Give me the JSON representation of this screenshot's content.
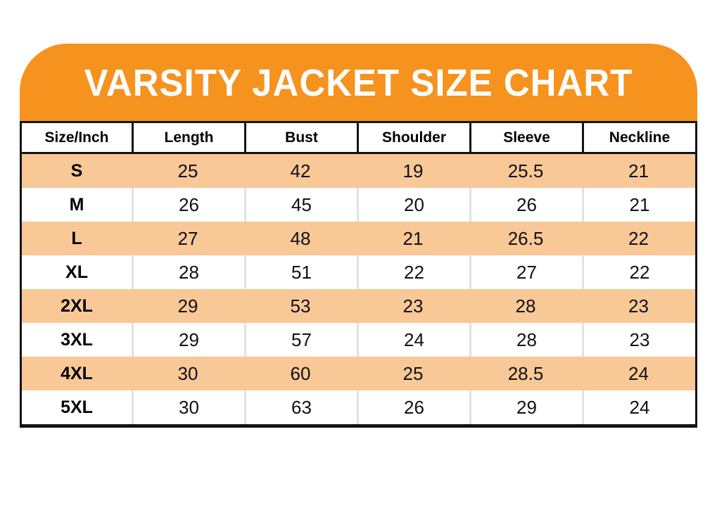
{
  "colors": {
    "banner_orange": "#F6921E",
    "stripe_orange": "#F8C897",
    "border_black": "#141414",
    "divider_gray": "#E2E2E2",
    "title_white": "#FFFFFF"
  },
  "chart_data": {
    "type": "table",
    "title": "VARSITY JACKET SIZE CHART",
    "units": "inches",
    "columns": [
      "Size/Inch",
      "Length",
      "Bust",
      "Shoulder",
      "Sleeve",
      "Neckline"
    ],
    "rows": [
      [
        "S",
        "25",
        "42",
        "19",
        "25.5",
        "21"
      ],
      [
        "M",
        "26",
        "45",
        "20",
        "26",
        "21"
      ],
      [
        "L",
        "27",
        "48",
        "21",
        "26.5",
        "22"
      ],
      [
        "XL",
        "28",
        "51",
        "22",
        "27",
        "22"
      ],
      [
        "2XL",
        "29",
        "53",
        "23",
        "28",
        "23"
      ],
      [
        "3XL",
        "29",
        "57",
        "24",
        "28",
        "23"
      ],
      [
        "4XL",
        "30",
        "60",
        "25",
        "28.5",
        "24"
      ],
      [
        "5XL",
        "30",
        "63",
        "26",
        "29",
        "24"
      ]
    ],
    "layout": {
      "striped_rows": "odd rows orange, even rows white",
      "legend": "none",
      "grid": "header bordered black; white rows have light gray column dividers"
    }
  }
}
